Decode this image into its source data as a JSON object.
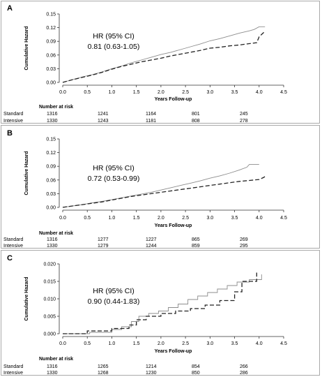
{
  "chart_data": [
    {
      "panel": "A",
      "type": "line",
      "xlabel": "Years Follow-up",
      "ylabel": "Cumulative Hazard",
      "xlim": [
        0,
        4.5
      ],
      "ylim": [
        0,
        0.15
      ],
      "xticks": [
        "0.0",
        "0.5",
        "1.0",
        "1.5",
        "2.0",
        "2.5",
        "3.0",
        "3.5",
        "4.0",
        "4.5"
      ],
      "yticks": [
        "0.00",
        "0.03",
        "0.06",
        "0.09",
        "0.12",
        "0.15"
      ],
      "hr_title": "HR (95% CI)",
      "hr_value": "0.81 (0.63-1.05)",
      "series": [
        {
          "style": "solid",
          "x": [
            0,
            0.2,
            0.4,
            0.6,
            0.8,
            1.0,
            1.2,
            1.4,
            1.6,
            1.8,
            2.0,
            2.2,
            2.4,
            2.6,
            2.8,
            3.0,
            3.2,
            3.4,
            3.6,
            3.8,
            3.9,
            4.0,
            4.12
          ],
          "y": [
            0,
            0.006,
            0.012,
            0.017,
            0.023,
            0.03,
            0.036,
            0.043,
            0.049,
            0.055,
            0.061,
            0.066,
            0.072,
            0.078,
            0.084,
            0.091,
            0.096,
            0.102,
            0.108,
            0.113,
            0.116,
            0.122,
            0.122
          ]
        },
        {
          "style": "dashed",
          "x": [
            0,
            0.2,
            0.4,
            0.6,
            0.8,
            1.0,
            1.2,
            1.4,
            1.6,
            1.8,
            2.0,
            2.2,
            2.4,
            2.6,
            2.8,
            3.0,
            3.2,
            3.4,
            3.6,
            3.8,
            3.95,
            4.0,
            4.05,
            4.12
          ],
          "y": [
            0,
            0.006,
            0.011,
            0.016,
            0.022,
            0.029,
            0.035,
            0.04,
            0.045,
            0.049,
            0.053,
            0.058,
            0.062,
            0.066,
            0.07,
            0.075,
            0.077,
            0.08,
            0.082,
            0.085,
            0.087,
            0.1,
            0.105,
            0.112
          ]
        }
      ],
      "risk_table": {
        "header": "Number at risk",
        "rows": [
          {
            "label": "Standard",
            "values": [
              "1316",
              "1241",
              "1164",
              "801",
              "245"
            ]
          },
          {
            "label": "Intensive",
            "values": [
              "1330",
              "1243",
              "1181",
              "808",
              "278"
            ]
          }
        ]
      }
    },
    {
      "panel": "B",
      "type": "line",
      "xlabel": "Years Follow-up",
      "ylabel": "Cumulative Hazard",
      "xlim": [
        0,
        4.5
      ],
      "ylim": [
        0,
        0.15
      ],
      "xticks": [
        "0.0",
        "0.5",
        "1.0",
        "1.5",
        "2.0",
        "2.5",
        "3.0",
        "3.5",
        "4.0",
        "4.5"
      ],
      "yticks": [
        "0.00",
        "0.03",
        "0.06",
        "0.09",
        "0.12",
        "0.15"
      ],
      "hr_title": "HR (95% CI)",
      "hr_value": "0.72 (0.53-0.99)",
      "series": [
        {
          "style": "solid",
          "x": [
            0,
            0.2,
            0.4,
            0.6,
            0.8,
            1.0,
            1.2,
            1.4,
            1.6,
            1.8,
            2.0,
            2.2,
            2.4,
            2.6,
            2.8,
            3.0,
            3.2,
            3.4,
            3.6,
            3.75,
            3.8,
            4.0
          ],
          "y": [
            0,
            0.003,
            0.006,
            0.01,
            0.013,
            0.017,
            0.021,
            0.025,
            0.029,
            0.033,
            0.038,
            0.043,
            0.048,
            0.053,
            0.058,
            0.064,
            0.069,
            0.075,
            0.082,
            0.088,
            0.094,
            0.094
          ]
        },
        {
          "style": "dashed",
          "x": [
            0,
            0.2,
            0.4,
            0.6,
            0.8,
            1.0,
            1.2,
            1.4,
            1.6,
            1.8,
            2.0,
            2.2,
            2.4,
            2.6,
            2.8,
            3.0,
            3.2,
            3.4,
            3.6,
            3.8,
            4.0,
            4.1,
            4.12
          ],
          "y": [
            0,
            0.003,
            0.006,
            0.009,
            0.012,
            0.016,
            0.02,
            0.024,
            0.027,
            0.03,
            0.033,
            0.036,
            0.039,
            0.042,
            0.045,
            0.048,
            0.051,
            0.054,
            0.057,
            0.059,
            0.061,
            0.066,
            0.068
          ]
        }
      ],
      "risk_table": {
        "header": "Number at risk",
        "rows": [
          {
            "label": "Standard",
            "values": [
              "1316",
              "1277",
              "1227",
              "865",
              "269"
            ]
          },
          {
            "label": "Intensive",
            "values": [
              "1330",
              "1279",
              "1244",
              "859",
              "295"
            ]
          }
        ]
      }
    },
    {
      "panel": "C",
      "type": "line",
      "xlabel": "Years Follow-up",
      "ylabel": "Cumulative Hazard",
      "xlim": [
        0,
        4.5
      ],
      "ylim": [
        0,
        0.02
      ],
      "xticks": [
        "0.0",
        "0.5",
        "1.0",
        "1.5",
        "2.0",
        "2.5",
        "3.0",
        "3.5",
        "4.0",
        "4.5"
      ],
      "yticks": [
        "0.000",
        "0.005",
        "0.010",
        "0.015",
        "0.020"
      ],
      "hr_title": "HR (95% CI)",
      "hr_value": "0.90 (0.44-1.83)",
      "series": [
        {
          "style": "solid",
          "x": [
            0,
            0.55,
            0.55,
            1.0,
            1.0,
            1.2,
            1.2,
            1.4,
            1.4,
            1.55,
            1.55,
            1.75,
            1.75,
            1.95,
            1.95,
            2.15,
            2.15,
            2.35,
            2.35,
            2.55,
            2.55,
            2.75,
            2.75,
            2.95,
            2.95,
            3.15,
            3.15,
            3.35,
            3.35,
            3.55,
            3.55,
            3.8,
            3.8,
            4.05,
            4.05,
            4.05
          ],
          "y": [
            0,
            0,
            0.0004,
            0.0004,
            0.0012,
            0.0012,
            0.002,
            0.002,
            0.0035,
            0.0035,
            0.005,
            0.005,
            0.0058,
            0.0058,
            0.0065,
            0.0065,
            0.0075,
            0.0075,
            0.0085,
            0.0085,
            0.0098,
            0.0098,
            0.0108,
            0.0108,
            0.0118,
            0.0118,
            0.0128,
            0.0128,
            0.0138,
            0.0138,
            0.0148,
            0.0148,
            0.0155,
            0.0155,
            0.017,
            0.017
          ]
        },
        {
          "style": "dashed",
          "x": [
            0,
            0.5,
            0.5,
            1.0,
            1.0,
            1.35,
            1.35,
            1.5,
            1.5,
            1.7,
            1.7,
            2.0,
            2.0,
            2.3,
            2.3,
            2.6,
            2.6,
            2.9,
            2.9,
            3.2,
            3.2,
            3.5,
            3.5,
            3.65,
            3.65,
            3.95,
            3.95
          ],
          "y": [
            0,
            0,
            0.0008,
            0.0008,
            0.0015,
            0.0015,
            0.0025,
            0.0025,
            0.004,
            0.004,
            0.005,
            0.005,
            0.0058,
            0.0058,
            0.0065,
            0.0065,
            0.0072,
            0.0072,
            0.0082,
            0.0082,
            0.0095,
            0.0095,
            0.012,
            0.012,
            0.015,
            0.015,
            0.0175
          ]
        }
      ],
      "risk_table": {
        "header": "Number at risk",
        "rows": [
          {
            "label": "Standard",
            "values": [
              "1316",
              "1265",
              "1214",
              "854",
              "266"
            ]
          },
          {
            "label": "Intensive",
            "values": [
              "1330",
              "1268",
              "1230",
              "850",
              "286"
            ]
          }
        ]
      }
    }
  ]
}
